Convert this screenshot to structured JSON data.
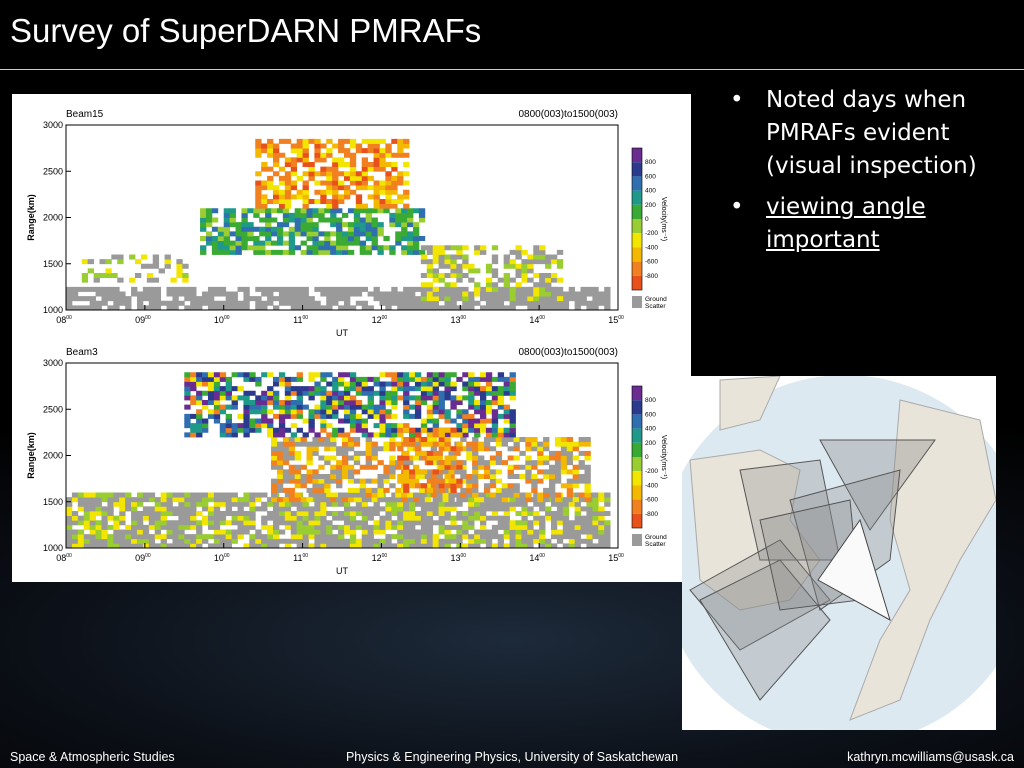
{
  "title": "Survey of SuperDARN PMRAFs",
  "bullets": [
    "Noted days when PMRAFs evident (visual inspection)",
    "viewing angle important"
  ],
  "panels": [
    {
      "beam": "Beam15",
      "time_range": "0800(003)to1500(003)",
      "ylabel": "Range(km)",
      "xlabel": "UT",
      "yticks": [
        "3000",
        "2500",
        "2000",
        "1500",
        "1000"
      ],
      "xticks": [
        {
          "h": "08",
          "m": "00"
        },
        {
          "h": "09",
          "m": "00"
        },
        {
          "h": "10",
          "m": "00"
        },
        {
          "h": "11",
          "m": "00"
        },
        {
          "h": "12",
          "m": "00"
        },
        {
          "h": "13",
          "m": "00"
        },
        {
          "h": "14",
          "m": "00"
        },
        {
          "h": "15",
          "m": "00"
        }
      ],
      "colorbar": {
        "title": "Velocity(ms⁻¹)",
        "labels": [
          "800",
          "600",
          "400",
          "200",
          "0",
          "-200",
          "-400",
          "-600",
          "-800"
        ],
        "ground": [
          "Ground",
          "Scatter"
        ]
      }
    },
    {
      "beam": "Beam3",
      "time_range": "0800(003)to1500(003)",
      "ylabel": "Range(km)",
      "xlabel": "UT",
      "yticks": [
        "3000",
        "2500",
        "2000",
        "1500",
        "1000"
      ],
      "xticks": [
        {
          "h": "08",
          "m": "00"
        },
        {
          "h": "09",
          "m": "00"
        },
        {
          "h": "10",
          "m": "00"
        },
        {
          "h": "11",
          "m": "00"
        },
        {
          "h": "12",
          "m": "00"
        },
        {
          "h": "13",
          "m": "00"
        },
        {
          "h": "14",
          "m": "00"
        },
        {
          "h": "15",
          "m": "00"
        }
      ],
      "colorbar": {
        "title": "Velocity(ms⁻¹)",
        "labels": [
          "800",
          "600",
          "400",
          "200",
          "0",
          "-200",
          "-400",
          "-600",
          "-800"
        ],
        "ground": [
          "Ground",
          "Scatter"
        ]
      }
    }
  ],
  "footer": {
    "left": "Space & Atmospheric Studies",
    "center": "Physics & Engineering Physics, University of Saskatchewan",
    "right": "kathryn.mcwilliams@usask.ca"
  }
}
